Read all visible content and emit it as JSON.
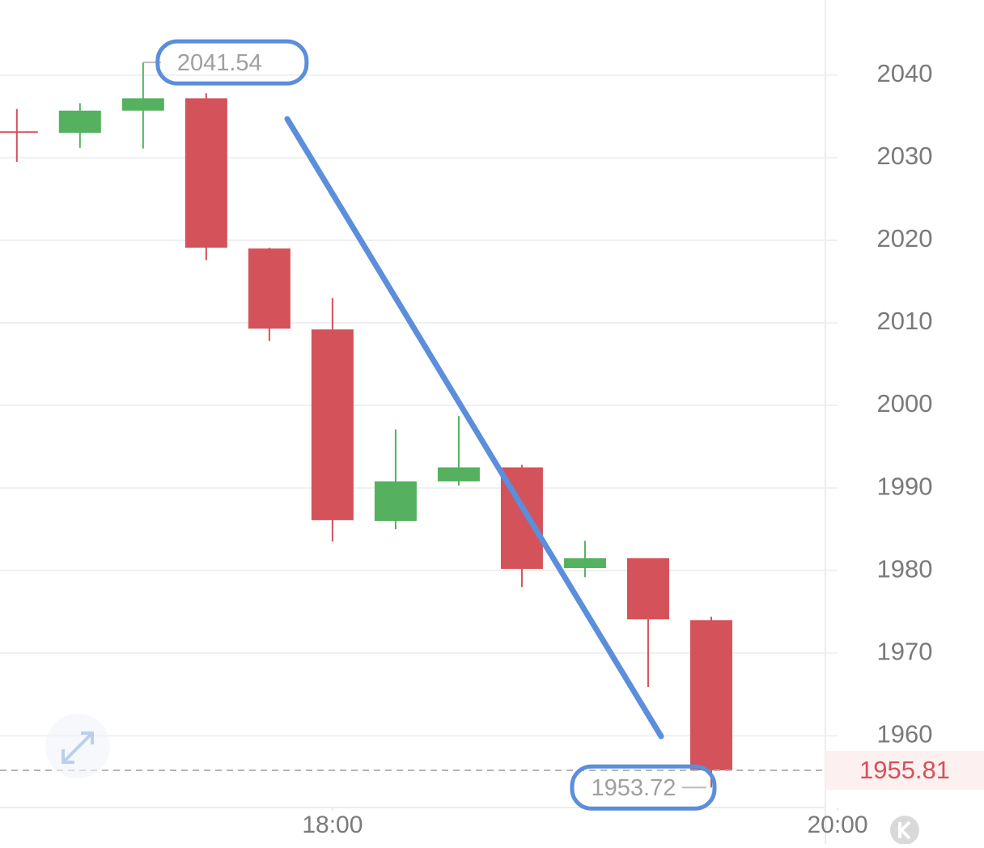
{
  "chart_data": {
    "type": "candlestick",
    "x": [
      1005,
      1020,
      1035,
      1050,
      1065,
      1080,
      1095,
      1110,
      1125,
      1140,
      1155,
      1170
    ],
    "open": [
      2033.2,
      2033.0,
      2035.7,
      2037.2,
      2019.0,
      2009.2,
      1986.0,
      1990.8,
      1992.5,
      1980.3,
      1981.5,
      1974.0
    ],
    "high": [
      2035.9,
      2036.6,
      2041.54,
      2037.8,
      2019.1,
      2013.0,
      1997.1,
      1998.7,
      1992.8,
      1983.6,
      1981.5,
      1974.4
    ],
    "low": [
      2029.5,
      2031.2,
      2031.1,
      2017.6,
      2007.8,
      1983.5,
      1985.0,
      1990.3,
      1978.0,
      1979.2,
      1965.9,
      1953.72
    ],
    "close": [
      2033.1,
      2035.7,
      2037.2,
      2019.1,
      2009.3,
      1986.1,
      1990.8,
      1992.5,
      1980.2,
      1981.5,
      1974.1,
      1955.81
    ],
    "up_color": "#55b15f",
    "down_color": "#d4525a",
    "xlim": [
      1001,
      1200
    ],
    "xticks": [
      {
        "value": 1080,
        "label": "18:00"
      },
      {
        "value": 1200,
        "label": "20:00"
      }
    ],
    "ylim": [
      1951.3,
      2049.1
    ],
    "yticks": [
      1960,
      1970,
      1980,
      1990,
      2000,
      2010,
      2020,
      2030,
      2040
    ],
    "grid": true
  }
}
